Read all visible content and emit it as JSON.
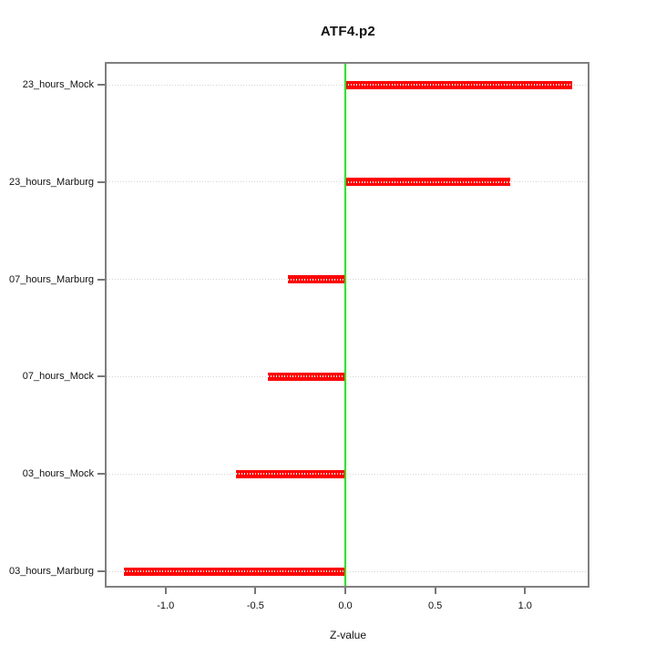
{
  "title": "ATF4.p2",
  "chart_data": {
    "type": "bar",
    "orientation": "horizontal",
    "title": "ATF4.p2",
    "xlabel": "Z-value",
    "ylabel": "",
    "categories": [
      "23_hours_Mock",
      "23_hours_Marburg",
      "07_hours_Marburg",
      "07_hours_Mock",
      "03_hours_Mock",
      "03_hours_Marburg"
    ],
    "values": [
      1.26,
      0.92,
      -0.32,
      -0.43,
      -0.61,
      -1.23
    ],
    "baseline": 0,
    "x_ticks": [
      -1.0,
      -0.5,
      0.0,
      0.5,
      1.0
    ],
    "x_tick_labels": [
      "-1.0",
      "-0.5",
      "0.0",
      "0.5",
      "1.0"
    ],
    "xlim": [
      -1.34,
      1.36
    ],
    "grid": "dotted-horizontal-per-category",
    "legend": "none",
    "colors": {
      "bar": "#ff0000",
      "zero_line": "#00ee00",
      "gridline": "#d4d4d4",
      "plot_border": "#808080",
      "tick": "#777777",
      "text": "#111111",
      "background": "#ffffff"
    }
  }
}
